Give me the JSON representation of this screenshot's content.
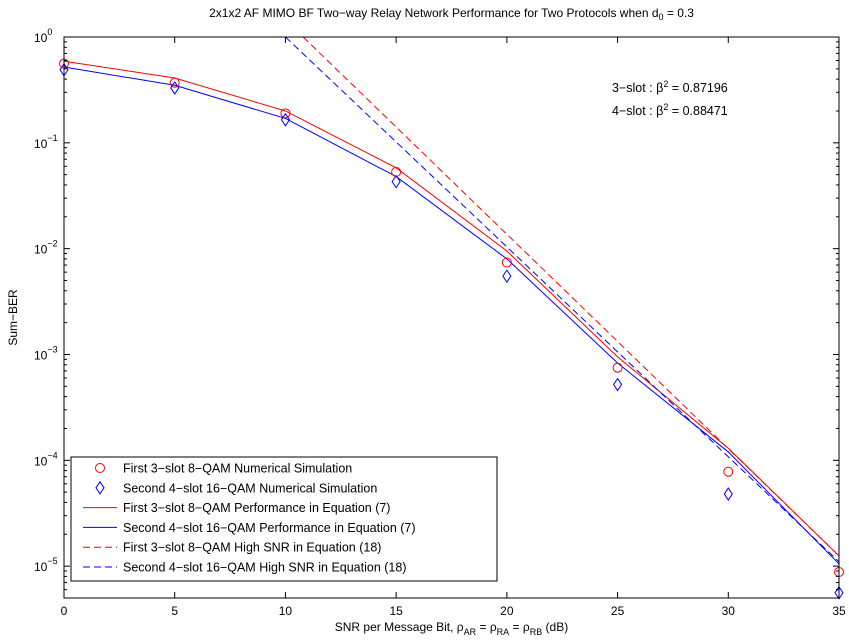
{
  "chart_data": {
    "type": "line",
    "title": "2x1x2 AF MIMO BF Two−way Relay Network Performance for Two Protocols when d",
    "title_sub": "0",
    "title_tail": " = 0.3",
    "xlabel": "SNR per Message Bit, ρ",
    "xlabel_parts": [
      {
        "text": "SNR per Message Bit, ρ",
        "sub": "AR"
      },
      {
        "text": " = ρ",
        "sub": "RA"
      },
      {
        "text": " = ρ",
        "sub": "RB"
      },
      {
        "text": " (dB)",
        "sub": ""
      }
    ],
    "ylabel": "Sum−BER",
    "xlim": [
      0,
      35
    ],
    "ylim": [
      5e-06,
      1
    ],
    "yscale": "log",
    "grid": false,
    "x_ticks": [
      0,
      5,
      10,
      15,
      20,
      25,
      30,
      35
    ],
    "x_tick_labels": [
      "0",
      "5",
      "10",
      "15",
      "20",
      "25",
      "30",
      "35"
    ],
    "y_ticks": [
      {
        "value": 1,
        "base": "10",
        "exp": "0"
      },
      {
        "value": 0.1,
        "base": "10",
        "exp": "−1"
      },
      {
        "value": 0.01,
        "base": "10",
        "exp": "−2"
      },
      {
        "value": 0.001,
        "base": "10",
        "exp": "−3"
      },
      {
        "value": 0.0001,
        "base": "10",
        "exp": "−4"
      },
      {
        "value": 1e-05,
        "base": "10",
        "exp": "−5"
      }
    ],
    "legend_position": "bottom-left",
    "annotations": [
      {
        "prefix": "3−slot : β",
        "sup": "2",
        "suffix": " = 0.87196"
      },
      {
        "prefix": "4−slot : β",
        "sup": "2",
        "suffix": " = 0.88471"
      }
    ],
    "series": [
      {
        "name": "First 3−slot 8−QAM Numerical Simulation",
        "style": "marker-circle",
        "color": "#ff0000",
        "x": [
          0,
          5,
          10,
          15,
          20,
          25,
          30,
          35
        ],
        "y": [
          0.56,
          0.37,
          0.19,
          0.053,
          0.0074,
          0.00075,
          7.8e-05,
          8.8e-06
        ]
      },
      {
        "name": "Second 4−slot 16−QAM Numerical Simulation",
        "style": "marker-diamond",
        "color": "#0000ff",
        "x": [
          0,
          5,
          10,
          15,
          20,
          25,
          30,
          35
        ],
        "y": [
          0.49,
          0.33,
          0.165,
          0.043,
          0.0055,
          0.00052,
          4.8e-05,
          5.6e-06
        ]
      },
      {
        "name": "First 3−slot 8−QAM Performance in Equation (7)",
        "style": "solid",
        "color": "#ff0000",
        "x": [
          0,
          5,
          10,
          15,
          20,
          25,
          30,
          35
        ],
        "y": [
          0.59,
          0.41,
          0.2,
          0.058,
          0.0095,
          0.00095,
          0.00013,
          1.25e-05
        ]
      },
      {
        "name": "Second 4−slot 16−QAM Performance in Equation (7)",
        "style": "solid",
        "color": "#0000ff",
        "x": [
          0,
          5,
          10,
          15,
          20,
          25,
          30,
          35
        ],
        "y": [
          0.52,
          0.35,
          0.17,
          0.048,
          0.008,
          0.00083,
          0.00012,
          1.05e-05
        ]
      },
      {
        "name": "First 3−slot 8−QAM High SNR in Equation (18)",
        "style": "dashed",
        "color": "#ff0000",
        "x": [
          10.8,
          35
        ],
        "y": [
          1,
          1.25e-05
        ]
      },
      {
        "name": "Second 4−slot 16−QAM High SNR in Equation (18)",
        "style": "dashed",
        "color": "#0000ff",
        "x": [
          10,
          35
        ],
        "y": [
          1,
          1.1e-05
        ]
      }
    ]
  }
}
